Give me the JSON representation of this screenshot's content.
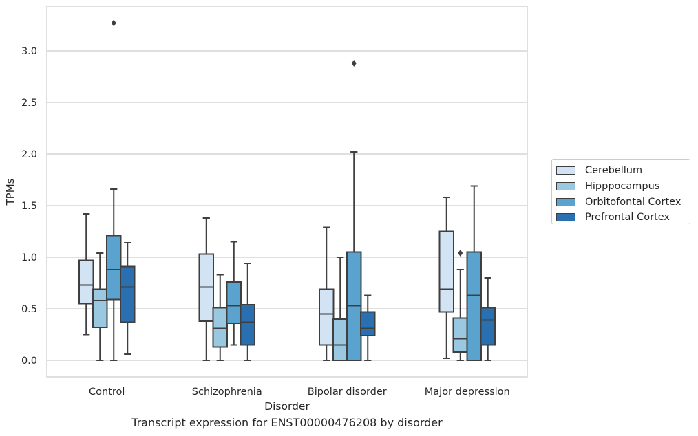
{
  "caption": "Transcript expression for ENST00000476208 by disorder",
  "chart_data": {
    "type": "box",
    "xlabel": "Disorder",
    "ylabel": "TPMs",
    "ylim": [
      -0.16,
      3.44
    ],
    "yticks": [
      0.0,
      0.5,
      1.0,
      1.5,
      2.0,
      2.5,
      3.0
    ],
    "ytick_labels": [
      "0.0",
      "0.5",
      "1.0",
      "1.5",
      "2.0",
      "2.5",
      "3.0"
    ],
    "grid": "horizontal",
    "legend_position": "right",
    "categories": [
      "Control",
      "Schizophrenia",
      "Bipolar disorder",
      "Major depression"
    ],
    "series": [
      {
        "name": "Cerebellum",
        "color": "#d2e3f3",
        "boxes": [
          {
            "whisker_low": 0.25,
            "q1": 0.55,
            "median": 0.73,
            "q3": 0.97,
            "whisker_high": 1.42,
            "outliers": []
          },
          {
            "whisker_low": 0.0,
            "q1": 0.38,
            "median": 0.71,
            "q3": 1.03,
            "whisker_high": 1.38,
            "outliers": []
          },
          {
            "whisker_low": 0.0,
            "q1": 0.15,
            "median": 0.45,
            "q3": 0.69,
            "whisker_high": 1.29,
            "outliers": []
          },
          {
            "whisker_low": 0.02,
            "q1": 0.47,
            "median": 0.69,
            "q3": 1.25,
            "whisker_high": 1.58,
            "outliers": []
          }
        ]
      },
      {
        "name": "Hipppocampus",
        "color": "#9ac8e0",
        "boxes": [
          {
            "whisker_low": 0.0,
            "q1": 0.32,
            "median": 0.58,
            "q3": 0.69,
            "whisker_high": 1.04,
            "outliers": []
          },
          {
            "whisker_low": 0.0,
            "q1": 0.13,
            "median": 0.31,
            "q3": 0.51,
            "whisker_high": 0.83,
            "outliers": []
          },
          {
            "whisker_low": 0.0,
            "q1": 0.0,
            "median": 0.15,
            "q3": 0.4,
            "whisker_high": 1.0,
            "outliers": []
          },
          {
            "whisker_low": 0.0,
            "q1": 0.08,
            "median": 0.21,
            "q3": 0.41,
            "whisker_high": 0.88,
            "outliers": [
              1.04
            ]
          }
        ]
      },
      {
        "name": "Orbitofontal Cortex",
        "color": "#5ba3cf",
        "boxes": [
          {
            "whisker_low": 0.0,
            "q1": 0.59,
            "median": 0.88,
            "q3": 1.21,
            "whisker_high": 1.66,
            "outliers": [
              3.27
            ]
          },
          {
            "whisker_low": 0.15,
            "q1": 0.36,
            "median": 0.53,
            "q3": 0.76,
            "whisker_high": 1.15,
            "outliers": []
          },
          {
            "whisker_low": 0.0,
            "q1": 0.0,
            "median": 0.53,
            "q3": 1.05,
            "whisker_high": 2.02,
            "outliers": [
              2.88
            ]
          },
          {
            "whisker_low": 0.0,
            "q1": 0.0,
            "median": 0.63,
            "q3": 1.05,
            "whisker_high": 1.69,
            "outliers": []
          }
        ]
      },
      {
        "name": "Prefrontal Cortex",
        "color": "#2a6fb0",
        "boxes": [
          {
            "whisker_low": 0.06,
            "q1": 0.37,
            "median": 0.71,
            "q3": 0.91,
            "whisker_high": 1.14,
            "outliers": []
          },
          {
            "whisker_low": 0.0,
            "q1": 0.15,
            "median": 0.37,
            "q3": 0.54,
            "whisker_high": 0.94,
            "outliers": []
          },
          {
            "whisker_low": 0.0,
            "q1": 0.24,
            "median": 0.31,
            "q3": 0.47,
            "whisker_high": 0.63,
            "outliers": []
          },
          {
            "whisker_low": 0.0,
            "q1": 0.15,
            "median": 0.39,
            "q3": 0.51,
            "whisker_high": 0.8,
            "outliers": []
          }
        ]
      }
    ]
  }
}
